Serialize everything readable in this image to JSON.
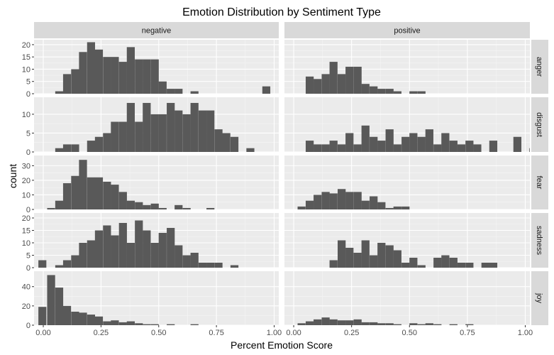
{
  "chart_data": {
    "type": "bar",
    "title": "Emotion Distribution by Sentiment Type",
    "xlabel": "Percent Emotion Score",
    "ylabel": "count",
    "xlim": [
      -0.04,
      1.02
    ],
    "x_ticks": [
      0.0,
      0.25,
      0.5,
      0.75,
      1.0
    ],
    "x_tick_labels": [
      "0.00",
      "0.25",
      "0.50",
      "0.75",
      "1.00"
    ],
    "bin_width": 0.0345,
    "columns": [
      "negative",
      "positive"
    ],
    "rows": [
      {
        "name": "anger",
        "ylim": [
          0,
          22
        ],
        "y_ticks": [
          0,
          5,
          10,
          15,
          20
        ]
      },
      {
        "name": "disgust",
        "ylim": [
          0,
          14.5
        ],
        "y_ticks": [
          0,
          5,
          10
        ]
      },
      {
        "name": "fear",
        "ylim": [
          0,
          37
        ],
        "y_ticks": [
          0,
          10,
          20,
          30
        ]
      },
      {
        "name": "sadness",
        "ylim": [
          0,
          22
        ],
        "y_ticks": [
          0,
          5,
          10,
          15,
          20
        ]
      },
      {
        "name": "joy",
        "ylim": [
          0,
          56
        ],
        "y_ticks": [
          0,
          20,
          40
        ]
      }
    ],
    "panels": [
      {
        "row": "anger",
        "col": "negative",
        "bins": [
          [
            0.069,
            1
          ],
          [
            0.103,
            8
          ],
          [
            0.138,
            10
          ],
          [
            0.172,
            17
          ],
          [
            0.207,
            21
          ],
          [
            0.241,
            18
          ],
          [
            0.276,
            15
          ],
          [
            0.31,
            15
          ],
          [
            0.345,
            13
          ],
          [
            0.379,
            19
          ],
          [
            0.414,
            14
          ],
          [
            0.448,
            14
          ],
          [
            0.483,
            14
          ],
          [
            0.517,
            5
          ],
          [
            0.552,
            2
          ],
          [
            0.586,
            2
          ],
          [
            0.655,
            1
          ],
          [
            0.966,
            3
          ]
        ]
      },
      {
        "row": "anger",
        "col": "positive",
        "bins": [
          [
            0.069,
            7
          ],
          [
            0.103,
            6
          ],
          [
            0.138,
            8
          ],
          [
            0.172,
            13
          ],
          [
            0.207,
            8
          ],
          [
            0.241,
            11
          ],
          [
            0.276,
            11
          ],
          [
            0.31,
            4
          ],
          [
            0.345,
            3
          ],
          [
            0.379,
            2
          ],
          [
            0.414,
            2
          ],
          [
            0.448,
            1
          ],
          [
            0.517,
            1
          ],
          [
            0.552,
            1
          ]
        ]
      },
      {
        "row": "disgust",
        "col": "negative",
        "bins": [
          [
            0.069,
            1
          ],
          [
            0.103,
            2
          ],
          [
            0.138,
            2
          ],
          [
            0.207,
            3
          ],
          [
            0.241,
            4
          ],
          [
            0.276,
            5
          ],
          [
            0.31,
            8
          ],
          [
            0.345,
            8
          ],
          [
            0.379,
            13
          ],
          [
            0.414,
            8
          ],
          [
            0.448,
            13
          ],
          [
            0.483,
            10
          ],
          [
            0.517,
            10
          ],
          [
            0.552,
            13
          ],
          [
            0.586,
            11
          ],
          [
            0.621,
            10
          ],
          [
            0.655,
            13
          ],
          [
            0.69,
            11
          ],
          [
            0.724,
            11
          ],
          [
            0.759,
            6
          ],
          [
            0.793,
            5
          ],
          [
            0.828,
            4
          ],
          [
            0.897,
            1
          ]
        ]
      },
      {
        "row": "disgust",
        "col": "positive",
        "bins": [
          [
            0.069,
            3
          ],
          [
            0.103,
            2
          ],
          [
            0.138,
            2
          ],
          [
            0.172,
            3
          ],
          [
            0.207,
            2
          ],
          [
            0.241,
            5
          ],
          [
            0.276,
            2
          ],
          [
            0.31,
            7
          ],
          [
            0.345,
            4
          ],
          [
            0.379,
            3
          ],
          [
            0.414,
            6
          ],
          [
            0.448,
            2
          ],
          [
            0.483,
            4
          ],
          [
            0.517,
            5
          ],
          [
            0.552,
            4
          ],
          [
            0.586,
            6
          ],
          [
            0.621,
            2
          ],
          [
            0.655,
            5
          ],
          [
            0.69,
            3
          ],
          [
            0.724,
            2
          ],
          [
            0.759,
            3
          ],
          [
            0.793,
            2
          ],
          [
            0.862,
            3
          ],
          [
            0.966,
            4
          ],
          [
            1.035,
            1
          ]
        ]
      },
      {
        "row": "fear",
        "col": "negative",
        "bins": [
          [
            0.034,
            1
          ],
          [
            0.069,
            6
          ],
          [
            0.103,
            18
          ],
          [
            0.138,
            23
          ],
          [
            0.172,
            34
          ],
          [
            0.207,
            22
          ],
          [
            0.241,
            22
          ],
          [
            0.276,
            19
          ],
          [
            0.31,
            17
          ],
          [
            0.345,
            12
          ],
          [
            0.379,
            6
          ],
          [
            0.414,
            5
          ],
          [
            0.448,
            3
          ],
          [
            0.483,
            4
          ],
          [
            0.517,
            1
          ],
          [
            0.586,
            3
          ],
          [
            0.621,
            1
          ],
          [
            0.724,
            1
          ]
        ]
      },
      {
        "row": "fear",
        "col": "positive",
        "bins": [
          [
            0.034,
            2
          ],
          [
            0.069,
            6
          ],
          [
            0.103,
            10
          ],
          [
            0.138,
            12
          ],
          [
            0.172,
            11
          ],
          [
            0.207,
            14
          ],
          [
            0.241,
            12
          ],
          [
            0.276,
            12
          ],
          [
            0.31,
            6
          ],
          [
            0.345,
            9
          ],
          [
            0.379,
            5
          ],
          [
            0.414,
            1
          ],
          [
            0.448,
            2
          ],
          [
            0.483,
            2
          ]
        ]
      },
      {
        "row": "sadness",
        "col": "negative",
        "bins": [
          [
            -0.004,
            3
          ],
          [
            0.069,
            1
          ],
          [
            0.103,
            3
          ],
          [
            0.138,
            5
          ],
          [
            0.172,
            10
          ],
          [
            0.207,
            11
          ],
          [
            0.241,
            15
          ],
          [
            0.276,
            17
          ],
          [
            0.31,
            13
          ],
          [
            0.345,
            18
          ],
          [
            0.379,
            10
          ],
          [
            0.414,
            19
          ],
          [
            0.448,
            15
          ],
          [
            0.483,
            10
          ],
          [
            0.517,
            14
          ],
          [
            0.552,
            16
          ],
          [
            0.586,
            9
          ],
          [
            0.621,
            5
          ],
          [
            0.655,
            6
          ],
          [
            0.69,
            2
          ],
          [
            0.724,
            2
          ],
          [
            0.759,
            2
          ],
          [
            0.828,
            1
          ]
        ]
      },
      {
        "row": "sadness",
        "col": "positive",
        "bins": [
          [
            0.172,
            3
          ],
          [
            0.207,
            11
          ],
          [
            0.241,
            8
          ],
          [
            0.276,
            6
          ],
          [
            0.31,
            11
          ],
          [
            0.345,
            5
          ],
          [
            0.379,
            10
          ],
          [
            0.414,
            9
          ],
          [
            0.448,
            7
          ],
          [
            0.483,
            2
          ],
          [
            0.517,
            4
          ],
          [
            0.552,
            1
          ],
          [
            0.621,
            4
          ],
          [
            0.655,
            5
          ],
          [
            0.69,
            4
          ],
          [
            0.724,
            2
          ],
          [
            0.759,
            2
          ],
          [
            0.828,
            2
          ],
          [
            0.862,
            2
          ]
        ]
      },
      {
        "row": "joy",
        "col": "negative",
        "bins": [
          [
            -0.004,
            19
          ],
          [
            0.034,
            52
          ],
          [
            0.069,
            39
          ],
          [
            0.103,
            20
          ],
          [
            0.138,
            14
          ],
          [
            0.172,
            13
          ],
          [
            0.207,
            11
          ],
          [
            0.241,
            9
          ],
          [
            0.276,
            4
          ],
          [
            0.31,
            5
          ],
          [
            0.345,
            3
          ],
          [
            0.379,
            4
          ],
          [
            0.414,
            2
          ],
          [
            0.448,
            1
          ],
          [
            0.483,
            1
          ],
          [
            0.552,
            1
          ],
          [
            0.655,
            1
          ]
        ]
      },
      {
        "row": "joy",
        "col": "positive",
        "bins": [
          [
            0.034,
            2
          ],
          [
            0.069,
            4
          ],
          [
            0.103,
            6
          ],
          [
            0.138,
            8
          ],
          [
            0.172,
            6
          ],
          [
            0.207,
            5
          ],
          [
            0.241,
            5
          ],
          [
            0.276,
            6
          ],
          [
            0.31,
            3
          ],
          [
            0.345,
            3
          ],
          [
            0.379,
            2
          ],
          [
            0.414,
            2
          ],
          [
            0.448,
            1
          ],
          [
            0.517,
            2
          ],
          [
            0.552,
            1
          ],
          [
            0.586,
            2
          ],
          [
            0.621,
            1
          ],
          [
            0.69,
            1
          ],
          [
            0.759,
            1
          ]
        ]
      }
    ]
  }
}
